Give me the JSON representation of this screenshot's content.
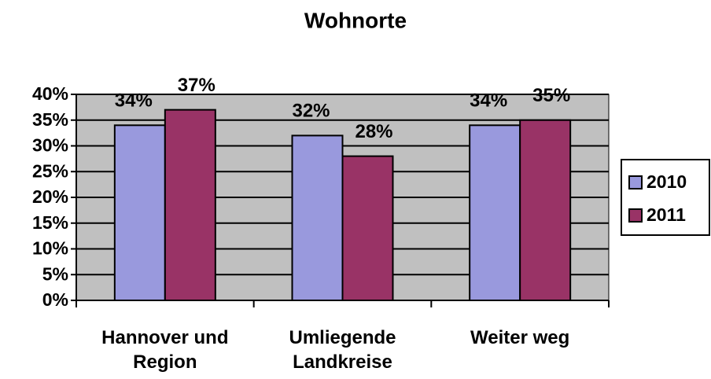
{
  "chart_data": {
    "type": "bar",
    "title": "Wohnorte",
    "categories": [
      "Hannover und Region",
      "Umliegende Landkreise",
      "Weiter weg"
    ],
    "series": [
      {
        "name": "2010",
        "color": "#9999dd",
        "values": [
          34,
          32,
          34
        ],
        "value_labels": [
          "34%",
          "32%",
          "34%"
        ]
      },
      {
        "name": "2011",
        "color": "#993366",
        "values": [
          37,
          28,
          35
        ],
        "value_labels": [
          "37%",
          "28%",
          "35%"
        ]
      }
    ],
    "ylim": [
      0,
      40
    ],
    "yticks": [
      {
        "value": 0,
        "label": "0%"
      },
      {
        "value": 5,
        "label": "5%"
      },
      {
        "value": 10,
        "label": "10%"
      },
      {
        "value": 15,
        "label": "15%"
      },
      {
        "value": 20,
        "label": "20%"
      },
      {
        "value": 25,
        "label": "25%"
      },
      {
        "value": 30,
        "label": "30%"
      },
      {
        "value": 35,
        "label": "35%"
      },
      {
        "value": 40,
        "label": "40%"
      }
    ],
    "grid": true,
    "legend": "right"
  }
}
